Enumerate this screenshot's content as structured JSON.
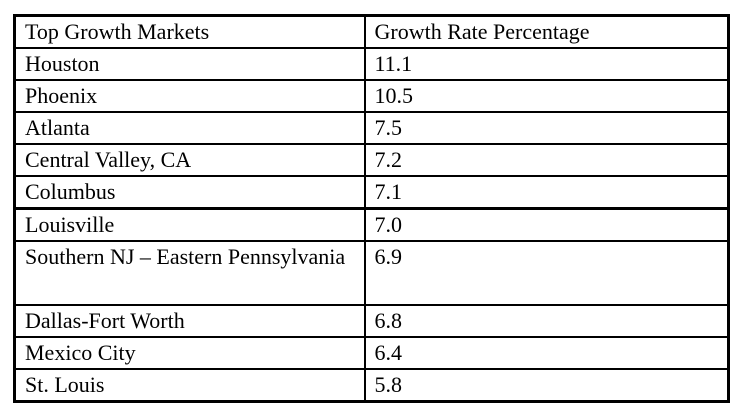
{
  "table": {
    "columns": [
      "Top Growth Markets",
      "Growth Rate Percentage"
    ],
    "rows": [
      {
        "market": "Houston",
        "rate": "11.1"
      },
      {
        "market": "Phoenix",
        "rate": "10.5"
      },
      {
        "market": "Atlanta",
        "rate": "7.5"
      },
      {
        "market": "Central Valley, CA",
        "rate": "7.2"
      },
      {
        "market": "Columbus",
        "rate": "7.1"
      },
      {
        "market": "Louisville",
        "rate": "7.0"
      },
      {
        "market": "Southern NJ – Eastern Pennsylvania",
        "rate": "6.9"
      },
      {
        "market": "Dallas-Fort Worth",
        "rate": "6.8"
      },
      {
        "market": "Mexico City",
        "rate": "6.4"
      },
      {
        "market": "St. Louis",
        "rate": "5.8"
      }
    ],
    "colors": {
      "border": "#000000",
      "text": "#000000",
      "background": "#ffffff"
    }
  }
}
